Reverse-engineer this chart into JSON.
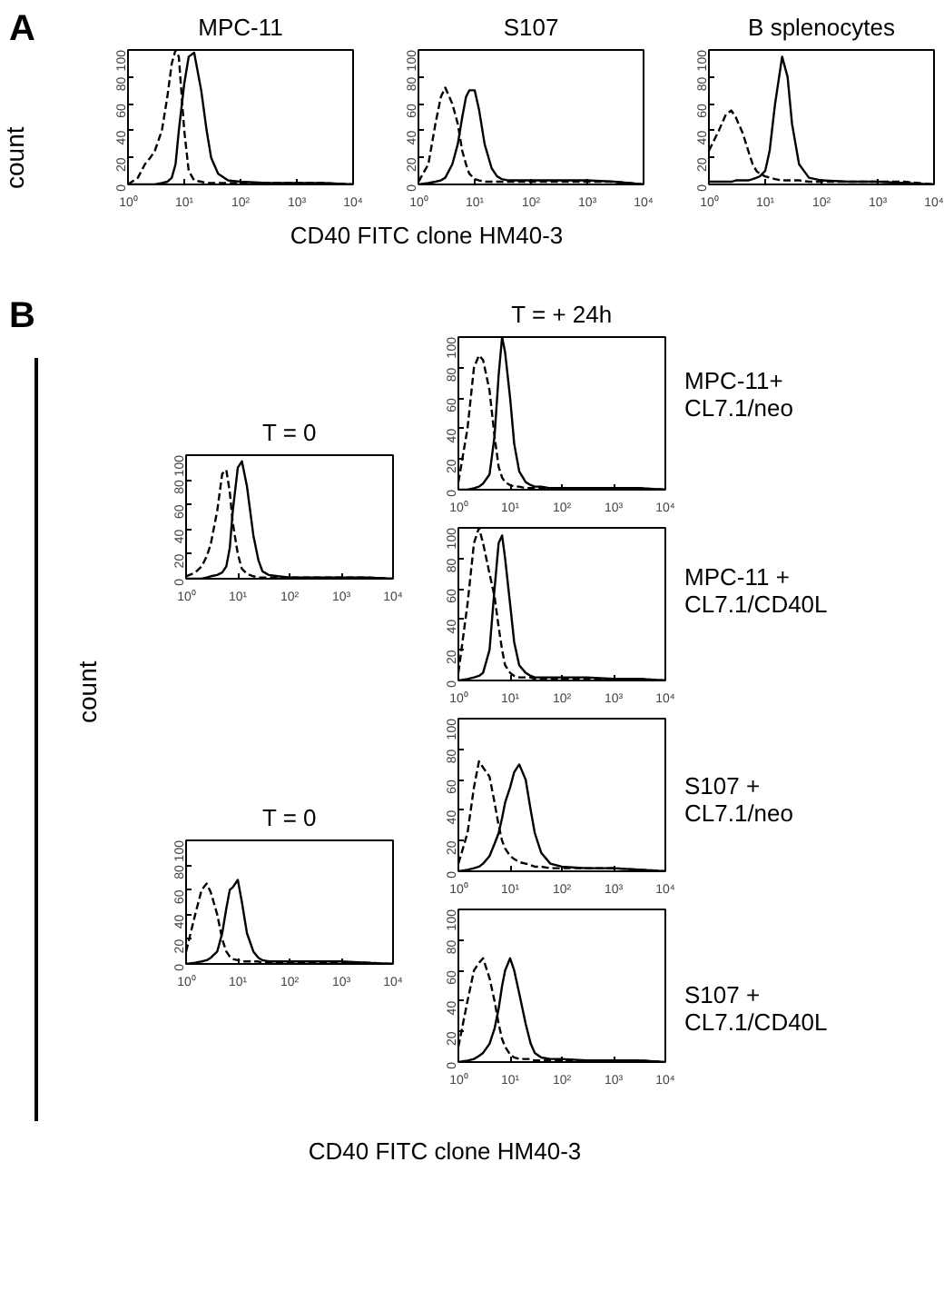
{
  "chart_data": [
    {
      "type": "line",
      "title": "MPC-11",
      "ylabel": "count",
      "annotations": [
        "A"
      ],
      "log": "x",
      "xlim": [
        1,
        10000
      ],
      "ylim": [
        0,
        100
      ],
      "xticks": [
        {
          "value": 1,
          "label": "10⁰"
        },
        {
          "value": 10,
          "label": "10¹"
        },
        {
          "value": 100,
          "label": "10²"
        },
        {
          "value": 1000,
          "label": "10³"
        },
        {
          "value": 10000,
          "label": "10⁴"
        }
      ],
      "yticks": [
        0,
        20,
        40,
        60,
        80,
        100
      ],
      "series": [
        {
          "color": "#000000",
          "line_style": "dashed",
          "x": [
            1,
            1.5,
            2,
            2.5,
            3,
            4,
            5,
            6,
            7,
            8,
            10,
            12,
            15,
            20,
            25,
            30,
            40,
            60,
            100,
            300,
            1000,
            3000,
            10000
          ],
          "values": [
            0,
            5,
            15,
            20,
            25,
            40,
            65,
            90,
            100,
            95,
            40,
            10,
            3,
            2,
            1,
            1,
            1,
            1,
            1,
            1,
            1,
            1,
            0
          ]
        },
        {
          "color": "#000000",
          "line_style": "solid",
          "x": [
            1,
            1.5,
            2,
            2.5,
            3,
            4,
            5,
            6,
            7,
            8,
            10,
            12,
            15,
            20,
            25,
            30,
            40,
            60,
            100,
            300,
            1000,
            3000,
            10000
          ],
          "values": [
            0,
            0,
            0,
            0,
            0,
            1,
            2,
            5,
            15,
            40,
            75,
            95,
            98,
            70,
            40,
            20,
            8,
            3,
            2,
            1,
            1,
            1,
            0
          ]
        }
      ]
    },
    {
      "type": "line",
      "title": "S107",
      "xlabel": "CD40 FITC clone HM40-3",
      "log": "x",
      "xlim": [
        1,
        10000
      ],
      "ylim": [
        0,
        100
      ],
      "xticks": [
        {
          "value": 1,
          "label": "10⁰"
        },
        {
          "value": 10,
          "label": "10¹"
        },
        {
          "value": 100,
          "label": "10²"
        },
        {
          "value": 1000,
          "label": "10³"
        },
        {
          "value": 10000,
          "label": "10⁴"
        }
      ],
      "yticks": [
        0,
        20,
        40,
        60,
        80,
        100
      ],
      "series": [
        {
          "color": "#000000",
          "line_style": "dashed",
          "x": [
            1,
            1.5,
            2,
            2.5,
            3,
            4,
            5,
            6,
            7,
            8,
            10,
            12,
            15,
            20,
            25,
            30,
            40,
            60,
            100,
            300,
            1000,
            3000,
            10000
          ],
          "values": [
            2,
            15,
            45,
            65,
            72,
            60,
            45,
            25,
            15,
            8,
            4,
            3,
            2,
            2,
            2,
            2,
            2,
            2,
            2,
            2,
            2,
            2,
            0
          ]
        },
        {
          "color": "#000000",
          "line_style": "solid",
          "x": [
            1,
            1.5,
            2,
            2.5,
            3,
            4,
            5,
            6,
            7,
            8,
            10,
            12,
            15,
            20,
            25,
            30,
            40,
            60,
            100,
            300,
            1000,
            3000,
            10000
          ],
          "values": [
            0,
            1,
            2,
            3,
            5,
            15,
            30,
            50,
            65,
            70,
            70,
            55,
            30,
            12,
            6,
            4,
            3,
            3,
            3,
            3,
            3,
            2,
            0
          ]
        }
      ]
    },
    {
      "type": "line",
      "title": "B splenocytes",
      "log": "x",
      "xlim": [
        1,
        10000
      ],
      "ylim": [
        0,
        100
      ],
      "xticks": [
        {
          "value": 1,
          "label": "10⁰"
        },
        {
          "value": 10,
          "label": "10¹"
        },
        {
          "value": 100,
          "label": "10²"
        },
        {
          "value": 1000,
          "label": "10³"
        },
        {
          "value": 10000,
          "label": "10⁴"
        }
      ],
      "yticks": [
        0,
        20,
        40,
        60,
        80,
        100
      ],
      "series": [
        {
          "color": "#000000",
          "line_style": "dashed",
          "x": [
            1,
            1.5,
            2,
            2.5,
            3,
            4,
            5,
            6,
            7,
            8,
            10,
            12,
            15,
            20,
            25,
            30,
            40,
            60,
            100,
            300,
            1000,
            3000,
            10000
          ],
          "values": [
            25,
            40,
            52,
            55,
            50,
            38,
            25,
            15,
            10,
            8,
            6,
            5,
            4,
            3,
            3,
            3,
            3,
            2,
            2,
            2,
            2,
            2,
            0
          ]
        },
        {
          "color": "#000000",
          "line_style": "solid",
          "x": [
            1,
            1.5,
            2,
            2.5,
            3,
            4,
            5,
            6,
            7,
            8,
            10,
            12,
            15,
            20,
            25,
            30,
            40,
            60,
            100,
            300,
            1000,
            3000,
            10000
          ],
          "values": [
            2,
            2,
            2,
            2,
            3,
            3,
            3,
            4,
            5,
            6,
            10,
            25,
            60,
            95,
            80,
            45,
            15,
            5,
            3,
            2,
            2,
            1,
            0
          ]
        }
      ]
    },
    {
      "type": "line",
      "title": "T = 0",
      "ylabel": "count",
      "annotations": [
        "B"
      ],
      "log": "x",
      "xlim": [
        1,
        10000
      ],
      "ylim": [
        0,
        100
      ],
      "xticks": [
        {
          "value": 1,
          "label": "10⁰"
        },
        {
          "value": 10,
          "label": "10¹"
        },
        {
          "value": 100,
          "label": "10²"
        },
        {
          "value": 1000,
          "label": "10³"
        },
        {
          "value": 10000,
          "label": "10⁴"
        }
      ],
      "yticks": [
        0,
        20,
        40,
        60,
        80,
        100
      ],
      "series": [
        {
          "color": "#000000",
          "line_style": "dashed",
          "x": [
            1,
            1.5,
            2,
            2.5,
            3,
            4,
            5,
            6,
            7,
            8,
            10,
            12,
            15,
            20,
            25,
            30,
            40,
            60,
            100,
            300,
            1000,
            3000,
            10000
          ],
          "values": [
            2,
            5,
            10,
            18,
            28,
            55,
            85,
            88,
            70,
            45,
            20,
            8,
            4,
            2,
            1,
            1,
            1,
            1,
            1,
            1,
            1,
            1,
            0
          ]
        },
        {
          "color": "#000000",
          "line_style": "solid",
          "x": [
            1,
            1.5,
            2,
            2.5,
            3,
            4,
            5,
            6,
            7,
            8,
            10,
            12,
            15,
            20,
            25,
            30,
            40,
            60,
            100,
            300,
            1000,
            3000,
            10000
          ],
          "values": [
            0,
            0,
            0,
            1,
            2,
            3,
            5,
            10,
            25,
            55,
            90,
            95,
            75,
            35,
            15,
            6,
            3,
            2,
            1,
            1,
            1,
            1,
            0
          ]
        }
      ]
    },
    {
      "type": "line",
      "title": "T = + 24h",
      "subtitle": "MPC-11+\nCL7.1/neo",
      "log": "x",
      "xlim": [
        1,
        10000
      ],
      "ylim": [
        0,
        100
      ],
      "xticks": [
        {
          "value": 1,
          "label": "10⁰"
        },
        {
          "value": 10,
          "label": "10¹"
        },
        {
          "value": 100,
          "label": "10²"
        },
        {
          "value": 1000,
          "label": "10³"
        },
        {
          "value": 10000,
          "label": "10⁴"
        }
      ],
      "yticks": [
        0,
        20,
        40,
        60,
        80,
        100
      ],
      "series": [
        {
          "color": "#000000",
          "line_style": "dashed",
          "x": [
            1,
            1.5,
            2,
            2.5,
            3,
            4,
            5,
            6,
            7,
            8,
            10,
            12,
            15,
            20,
            25,
            30,
            40,
            60,
            100,
            300,
            1000,
            3000,
            10000
          ],
          "values": [
            5,
            40,
            80,
            88,
            85,
            65,
            35,
            15,
            8,
            5,
            3,
            2,
            2,
            1,
            1,
            1,
            1,
            1,
            1,
            1,
            1,
            1,
            0
          ]
        },
        {
          "color": "#000000",
          "line_style": "solid",
          "x": [
            1,
            1.5,
            2,
            2.5,
            3,
            4,
            5,
            6,
            7,
            8,
            10,
            12,
            15,
            20,
            25,
            30,
            40,
            60,
            100,
            300,
            1000,
            3000,
            10000
          ],
          "values": [
            0,
            0,
            1,
            2,
            4,
            10,
            35,
            75,
            100,
            90,
            60,
            30,
            12,
            5,
            3,
            2,
            2,
            1,
            1,
            1,
            1,
            1,
            0
          ]
        }
      ]
    },
    {
      "type": "line",
      "subtitle": "MPC-11 +\nCL7.1/CD40L",
      "log": "x",
      "xlim": [
        1,
        10000
      ],
      "ylim": [
        0,
        100
      ],
      "xticks": [
        {
          "value": 1,
          "label": "10⁰"
        },
        {
          "value": 10,
          "label": "10¹"
        },
        {
          "value": 100,
          "label": "10²"
        },
        {
          "value": 1000,
          "label": "10³"
        },
        {
          "value": 10000,
          "label": "10⁴"
        }
      ],
      "yticks": [
        0,
        20,
        40,
        60,
        80,
        100
      ],
      "series": [
        {
          "color": "#000000",
          "line_style": "dashed",
          "x": [
            1,
            1.5,
            2,
            2.5,
            3,
            4,
            5,
            6,
            7,
            8,
            10,
            12,
            15,
            20,
            25,
            30,
            40,
            60,
            100,
            300,
            1000,
            3000,
            10000
          ],
          "values": [
            5,
            50,
            90,
            100,
            90,
            70,
            55,
            35,
            20,
            10,
            5,
            3,
            2,
            2,
            2,
            1,
            1,
            1,
            1,
            1,
            1,
            1,
            0
          ]
        },
        {
          "color": "#000000",
          "line_style": "solid",
          "x": [
            1,
            1.5,
            2,
            2.5,
            3,
            4,
            5,
            6,
            7,
            8,
            10,
            12,
            15,
            20,
            25,
            30,
            40,
            60,
            100,
            300,
            1000,
            3000,
            10000
          ],
          "values": [
            0,
            1,
            2,
            3,
            5,
            20,
            60,
            90,
            95,
            80,
            50,
            25,
            10,
            5,
            3,
            2,
            2,
            2,
            2,
            2,
            1,
            1,
            0
          ]
        }
      ]
    },
    {
      "type": "line",
      "title": "T = 0",
      "log": "x",
      "xlim": [
        1,
        10000
      ],
      "ylim": [
        0,
        100
      ],
      "xticks": [
        {
          "value": 1,
          "label": "10⁰"
        },
        {
          "value": 10,
          "label": "10¹"
        },
        {
          "value": 100,
          "label": "10²"
        },
        {
          "value": 1000,
          "label": "10³"
        },
        {
          "value": 10000,
          "label": "10⁴"
        }
      ],
      "yticks": [
        0,
        20,
        40,
        60,
        80,
        100
      ],
      "series": [
        {
          "color": "#000000",
          "line_style": "dashed",
          "x": [
            1,
            1.5,
            2,
            2.5,
            3,
            4,
            5,
            6,
            7,
            8,
            10,
            12,
            15,
            20,
            25,
            30,
            40,
            60,
            100,
            300,
            1000,
            3000,
            10000
          ],
          "values": [
            10,
            40,
            60,
            65,
            58,
            40,
            20,
            10,
            6,
            4,
            3,
            2,
            2,
            2,
            2,
            1,
            1,
            1,
            1,
            1,
            1,
            1,
            0
          ]
        },
        {
          "color": "#000000",
          "line_style": "solid",
          "x": [
            1,
            1.5,
            2,
            2.5,
            3,
            4,
            5,
            6,
            7,
            8,
            10,
            12,
            15,
            20,
            25,
            30,
            40,
            60,
            100,
            300,
            1000,
            3000,
            10000
          ],
          "values": [
            0,
            1,
            2,
            3,
            5,
            10,
            25,
            45,
            60,
            62,
            68,
            50,
            25,
            10,
            5,
            3,
            2,
            2,
            2,
            2,
            2,
            1,
            0
          ]
        }
      ]
    },
    {
      "type": "line",
      "subtitle": "S107 +\nCL7.1/neo",
      "log": "x",
      "xlim": [
        1,
        10000
      ],
      "ylim": [
        0,
        100
      ],
      "xticks": [
        {
          "value": 1,
          "label": "10⁰"
        },
        {
          "value": 10,
          "label": "10¹"
        },
        {
          "value": 100,
          "label": "10²"
        },
        {
          "value": 1000,
          "label": "10³"
        },
        {
          "value": 10000,
          "label": "10⁴"
        }
      ],
      "yticks": [
        0,
        20,
        40,
        60,
        80,
        100
      ],
      "series": [
        {
          "color": "#000000",
          "line_style": "dashed",
          "x": [
            1,
            1.5,
            2,
            2.5,
            3,
            4,
            5,
            6,
            7,
            8,
            10,
            12,
            15,
            20,
            25,
            30,
            40,
            60,
            100,
            300,
            1000,
            3000,
            10000
          ],
          "values": [
            5,
            25,
            55,
            72,
            68,
            62,
            45,
            30,
            20,
            15,
            10,
            8,
            6,
            5,
            4,
            3,
            3,
            2,
            2,
            2,
            2,
            1,
            0
          ]
        },
        {
          "color": "#000000",
          "line_style": "solid",
          "x": [
            1,
            1.5,
            2,
            2.5,
            3,
            4,
            5,
            6,
            7,
            8,
            10,
            12,
            15,
            20,
            25,
            30,
            40,
            60,
            100,
            300,
            1000,
            3000,
            10000
          ],
          "values": [
            0,
            1,
            2,
            3,
            5,
            10,
            18,
            25,
            35,
            45,
            55,
            65,
            70,
            60,
            40,
            25,
            12,
            5,
            3,
            2,
            2,
            1,
            0
          ]
        }
      ]
    },
    {
      "type": "line",
      "subtitle": "S107 +\nCL7.1/CD40L",
      "xlabel": "CD40 FITC clone HM40-3",
      "log": "x",
      "xlim": [
        1,
        10000
      ],
      "ylim": [
        0,
        100
      ],
      "xticks": [
        {
          "value": 1,
          "label": "10⁰"
        },
        {
          "value": 10,
          "label": "10¹"
        },
        {
          "value": 100,
          "label": "10²"
        },
        {
          "value": 1000,
          "label": "10³"
        },
        {
          "value": 10000,
          "label": "10⁴"
        }
      ],
      "yticks": [
        0,
        20,
        40,
        60,
        80,
        100
      ],
      "series": [
        {
          "color": "#000000",
          "line_style": "dashed",
          "x": [
            1,
            1.5,
            2,
            2.5,
            3,
            4,
            5,
            6,
            7,
            8,
            10,
            12,
            15,
            20,
            25,
            30,
            40,
            60,
            100,
            300,
            1000,
            3000,
            10000
          ],
          "values": [
            10,
            40,
            60,
            65,
            68,
            55,
            40,
            25,
            15,
            10,
            5,
            3,
            2,
            2,
            2,
            1,
            1,
            1,
            1,
            1,
            1,
            1,
            0
          ]
        },
        {
          "color": "#000000",
          "line_style": "solid",
          "x": [
            1,
            1.5,
            2,
            2.5,
            3,
            4,
            5,
            6,
            7,
            8,
            10,
            12,
            15,
            20,
            25,
            30,
            40,
            60,
            100,
            300,
            1000,
            3000,
            10000
          ],
          "values": [
            0,
            1,
            2,
            4,
            6,
            12,
            22,
            35,
            50,
            60,
            68,
            60,
            45,
            25,
            12,
            6,
            3,
            2,
            2,
            1,
            1,
            1,
            0
          ]
        }
      ]
    }
  ]
}
